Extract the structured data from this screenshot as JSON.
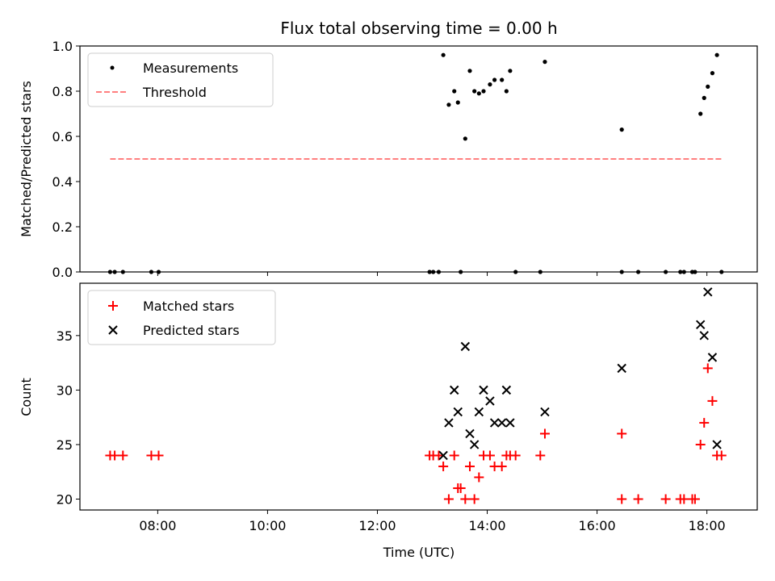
{
  "chart_data": [
    {
      "type": "scatter",
      "title": "Flux total observing time = 0.00 h",
      "xlabel": "",
      "ylabel": "Matched/Predicted stars",
      "xlim": [
        "06:35",
        "18:55"
      ],
      "ylim": [
        0,
        1.0
      ],
      "yticks": [
        "0.0",
        "0.2",
        "0.4",
        "0.6",
        "0.8",
        "1.0"
      ],
      "legend_position": "top-left",
      "series": [
        {
          "name": "Measurements",
          "style": "dot",
          "color": "#000000",
          "points": [
            [
              "07:08",
              0
            ],
            [
              "07:13",
              0
            ],
            [
              "07:22",
              0
            ],
            [
              "07:53",
              0
            ],
            [
              "08:01",
              0
            ],
            [
              "12:57",
              0
            ],
            [
              "13:01",
              0
            ],
            [
              "13:07",
              0
            ],
            [
              "13:12",
              0.96
            ],
            [
              "13:18",
              0.74
            ],
            [
              "13:24",
              0.8
            ],
            [
              "13:28",
              0.75
            ],
            [
              "13:31",
              0
            ],
            [
              "13:36",
              0.59
            ],
            [
              "13:41",
              0.89
            ],
            [
              "13:46",
              0.8
            ],
            [
              "13:51",
              0.79
            ],
            [
              "13:56",
              0.8
            ],
            [
              "14:03",
              0.83
            ],
            [
              "14:08",
              0.85
            ],
            [
              "14:16",
              0.85
            ],
            [
              "14:21",
              0.8
            ],
            [
              "14:25",
              0.89
            ],
            [
              "14:31",
              0
            ],
            [
              "14:58",
              0
            ],
            [
              "15:03",
              0.93
            ],
            [
              "16:27",
              0
            ],
            [
              "16:27",
              0.63
            ],
            [
              "16:45",
              0
            ],
            [
              "17:15",
              0
            ],
            [
              "17:31",
              0
            ],
            [
              "17:35",
              0
            ],
            [
              "17:44",
              0
            ],
            [
              "17:47",
              0
            ],
            [
              "17:53",
              0.7
            ],
            [
              "17:57",
              0.77
            ],
            [
              "18:01",
              0.82
            ],
            [
              "18:06",
              0.88
            ],
            [
              "18:11",
              0.96
            ],
            [
              "18:16",
              0
            ]
          ]
        },
        {
          "name": "Threshold",
          "style": "dashed-line",
          "color": "#ff7f7f",
          "points": [
            [
              "07:08",
              0.5
            ],
            [
              "18:16",
              0.5
            ]
          ]
        }
      ]
    },
    {
      "type": "scatter",
      "title": "",
      "xlabel": "Time (UTC)",
      "ylabel": "Count",
      "xlim": [
        "06:35",
        "18:55"
      ],
      "ylim": [
        19.0,
        39.8
      ],
      "yticks": [
        "20",
        "25",
        "30",
        "35"
      ],
      "xticks": [
        "08:00",
        "10:00",
        "12:00",
        "14:00",
        "16:00",
        "18:00"
      ],
      "legend_position": "top-left",
      "series": [
        {
          "name": "Matched stars",
          "style": "plus",
          "color": "#ff0000",
          "points": [
            [
              "07:08",
              24
            ],
            [
              "07:13",
              24
            ],
            [
              "07:22",
              24
            ],
            [
              "07:53",
              24
            ],
            [
              "08:01",
              24
            ],
            [
              "12:57",
              24
            ],
            [
              "13:01",
              24
            ],
            [
              "13:07",
              24
            ],
            [
              "13:12",
              23
            ],
            [
              "13:18",
              20
            ],
            [
              "13:24",
              24
            ],
            [
              "13:28",
              21
            ],
            [
              "13:31",
              21
            ],
            [
              "13:36",
              20
            ],
            [
              "13:41",
              23
            ],
            [
              "13:46",
              20
            ],
            [
              "13:51",
              22
            ],
            [
              "13:56",
              24
            ],
            [
              "14:03",
              24
            ],
            [
              "14:08",
              23
            ],
            [
              "14:16",
              23
            ],
            [
              "14:21",
              24
            ],
            [
              "14:25",
              24
            ],
            [
              "14:31",
              24
            ],
            [
              "14:58",
              24
            ],
            [
              "15:03",
              26
            ],
            [
              "16:27",
              26
            ],
            [
              "16:27",
              20
            ],
            [
              "16:45",
              20
            ],
            [
              "17:15",
              20
            ],
            [
              "17:31",
              20
            ],
            [
              "17:35",
              20
            ],
            [
              "17:44",
              20
            ],
            [
              "17:47",
              20
            ],
            [
              "17:53",
              25
            ],
            [
              "17:57",
              27
            ],
            [
              "18:01",
              32
            ],
            [
              "18:06",
              29
            ],
            [
              "18:11",
              24
            ],
            [
              "18:16",
              24
            ]
          ]
        },
        {
          "name": "Predicted stars",
          "style": "x",
          "color": "#000000",
          "points": [
            [
              "13:12",
              24
            ],
            [
              "13:18",
              27
            ],
            [
              "13:24",
              30
            ],
            [
              "13:28",
              28
            ],
            [
              "13:36",
              34
            ],
            [
              "13:41",
              26
            ],
            [
              "13:46",
              25
            ],
            [
              "13:51",
              28
            ],
            [
              "13:56",
              30
            ],
            [
              "14:03",
              29
            ],
            [
              "14:08",
              27
            ],
            [
              "14:16",
              27
            ],
            [
              "14:21",
              30
            ],
            [
              "14:25",
              27
            ],
            [
              "15:03",
              28
            ],
            [
              "16:27",
              32
            ],
            [
              "17:53",
              36
            ],
            [
              "17:57",
              35
            ],
            [
              "18:01",
              39
            ],
            [
              "18:06",
              33
            ],
            [
              "18:11",
              25
            ]
          ]
        }
      ]
    }
  ]
}
